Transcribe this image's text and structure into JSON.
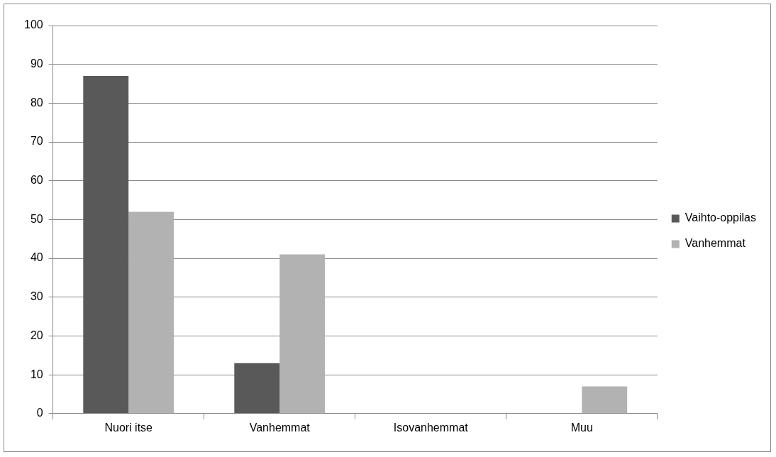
{
  "chart_data": {
    "type": "bar",
    "categories": [
      "Nuori itse",
      "Vanhemmat",
      "Isovanhemmat",
      "Muu"
    ],
    "series": [
      {
        "name": "Vaihto-oppilas",
        "color": "#595959",
        "values": [
          87,
          13,
          0,
          0
        ]
      },
      {
        "name": "Vanhemmat",
        "color": "#b2b2b2",
        "values": [
          52,
          41,
          0,
          7
        ]
      }
    ],
    "ylim": [
      0,
      100
    ],
    "yticks": [
      0,
      10,
      20,
      30,
      40,
      50,
      60,
      70,
      80,
      90,
      100
    ],
    "grid": "y",
    "legend": "right"
  }
}
